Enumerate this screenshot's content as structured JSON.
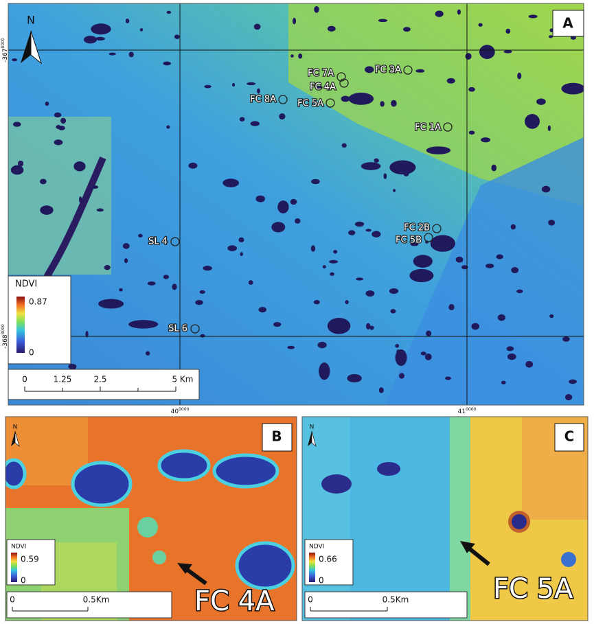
{
  "panels": [
    {
      "label": "A",
      "north": "N",
      "y_coords": [
        {
          "main": "-367",
          "sup": "0000"
        },
        {
          "main": "-368",
          "sup": "0000"
        }
      ],
      "x_coords": [
        {
          "main": "40",
          "sup": "0000"
        },
        {
          "main": "41",
          "sup": "0000"
        }
      ],
      "sites": [
        "FC 7A",
        "FC 3A",
        "FC 4A",
        "FC 8A",
        "FC 5A",
        "FC 1A",
        "FC 2B",
        "FC 5B",
        "SL 4",
        "SL 6"
      ],
      "legend": {
        "title": "NDVI",
        "max": "0.87",
        "min": "0"
      },
      "scale_bar": [
        "0",
        "1.25",
        "2.5",
        "5 Km"
      ]
    },
    {
      "label": "B",
      "north": "N",
      "legend": {
        "title": "NDVI",
        "max": "0.59",
        "min": "0"
      },
      "scale_bar": [
        "0",
        "0.5Km"
      ],
      "callout": "FC 4A"
    },
    {
      "label": "C",
      "north": "N",
      "legend": {
        "title": "NDVI",
        "max": "0.66",
        "min": "0"
      },
      "scale_bar": [
        "0",
        "0.5Km"
      ],
      "callout": "FC 5A"
    }
  ]
}
